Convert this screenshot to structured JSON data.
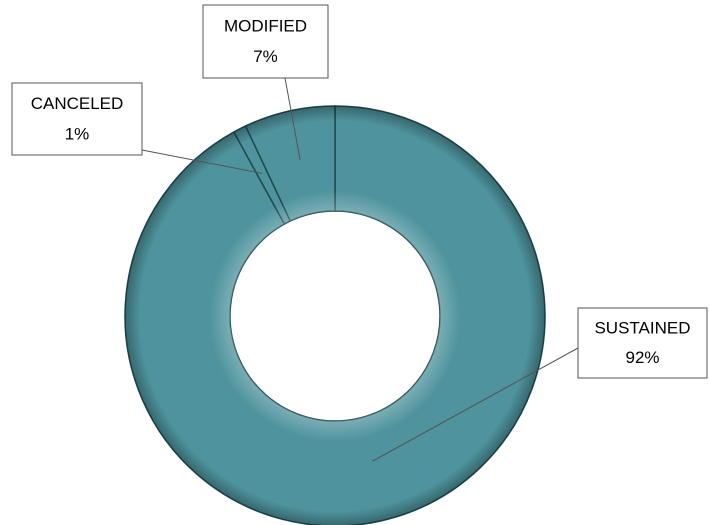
{
  "chart_data": {
    "type": "donut",
    "categories": [
      "SUSTAINED",
      "CANCELED",
      "MODIFIED"
    ],
    "values": [
      92,
      1,
      7
    ],
    "value_labels": [
      "92%",
      "1%",
      "7%"
    ],
    "color": "#4e939d"
  }
}
